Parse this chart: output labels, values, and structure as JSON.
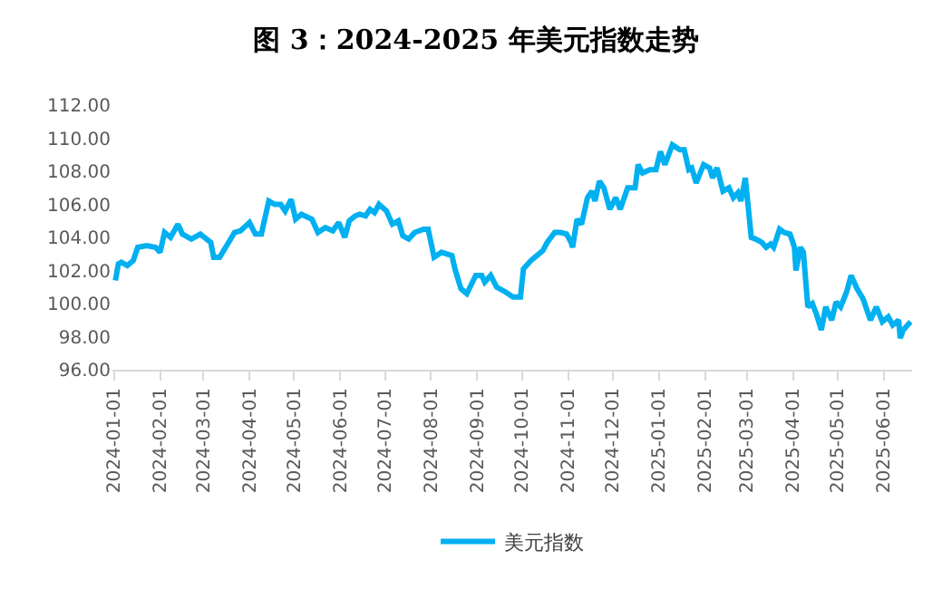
{
  "chart_data": {
    "type": "line",
    "title": "图 3：2024-2025 年美元指数走势",
    "x": [
      "2024-01-02",
      "2024-01-04",
      "2024-01-06",
      "2024-01-10",
      "2024-01-14",
      "2024-01-17",
      "2024-01-23",
      "2024-01-29",
      "2024-02-01",
      "2024-02-04",
      "2024-02-08",
      "2024-02-13",
      "2024-02-16",
      "2024-02-22",
      "2024-02-28",
      "2024-03-06",
      "2024-03-08",
      "2024-03-12",
      "2024-03-16",
      "2024-03-22",
      "2024-03-26",
      "2024-04-01",
      "2024-04-05",
      "2024-04-09",
      "2024-04-14",
      "2024-04-18",
      "2024-04-22",
      "2024-04-25",
      "2024-04-29",
      "2024-05-02",
      "2024-05-06",
      "2024-05-13",
      "2024-05-17",
      "2024-05-22",
      "2024-05-27",
      "2024-05-31",
      "2024-06-04",
      "2024-06-07",
      "2024-06-11",
      "2024-06-14",
      "2024-06-18",
      "2024-06-21",
      "2024-06-24",
      "2024-06-27",
      "2024-07-02",
      "2024-07-06",
      "2024-07-10",
      "2024-07-13",
      "2024-07-17",
      "2024-07-21",
      "2024-07-27",
      "2024-07-30",
      "2024-08-03",
      "2024-08-08",
      "2024-08-15",
      "2024-08-17",
      "2024-08-21",
      "2024-08-25",
      "2024-08-31",
      "2024-09-04",
      "2024-09-06",
      "2024-09-10",
      "2024-09-14",
      "2024-09-20",
      "2024-09-25",
      "2024-09-30",
      "2024-10-02",
      "2024-10-07",
      "2024-10-11",
      "2024-10-15",
      "2024-10-18",
      "2024-10-23",
      "2024-10-27",
      "2024-10-31",
      "2024-11-03",
      "2024-11-04",
      "2024-11-07",
      "2024-11-10",
      "2024-11-14",
      "2024-11-17",
      "2024-11-19",
      "2024-11-22",
      "2024-11-25",
      "2024-11-29",
      "2024-12-03",
      "2024-12-06",
      "2024-12-11",
      "2024-12-16",
      "2024-12-18",
      "2024-12-21",
      "2024-12-26",
      "2024-12-30",
      "2025-01-02",
      "2025-01-05",
      "2025-01-10",
      "2025-01-15",
      "2025-01-18",
      "2025-01-21",
      "2025-01-23",
      "2025-01-26",
      "2025-01-31",
      "2025-02-04",
      "2025-02-06",
      "2025-02-09",
      "2025-02-13",
      "2025-02-17",
      "2025-02-20",
      "2025-02-23",
      "2025-02-25",
      "2025-02-28",
      "2025-03-04",
      "2025-03-07",
      "2025-03-11",
      "2025-03-14",
      "2025-03-17",
      "2025-03-19",
      "2025-03-23",
      "2025-03-26",
      "2025-03-30",
      "2025-04-02",
      "2025-04-03",
      "2025-04-06",
      "2025-04-08",
      "2025-04-11",
      "2025-04-14",
      "2025-04-17",
      "2025-04-20",
      "2025-04-23",
      "2025-04-27",
      "2025-04-30",
      "2025-05-03",
      "2025-05-07",
      "2025-05-10",
      "2025-05-14",
      "2025-05-18",
      "2025-05-23",
      "2025-05-27",
      "2025-05-31",
      "2025-06-04",
      "2025-06-07",
      "2025-06-11",
      "2025-06-12",
      "2025-06-14",
      "2025-06-17",
      "2025-06-19"
    ],
    "series": [
      {
        "name": "美元指数",
        "color": "#00b0f0",
        "values": [
          101.4,
          102.4,
          102.5,
          102.3,
          102.6,
          103.4,
          103.5,
          103.4,
          103.1,
          104.3,
          104.0,
          104.8,
          104.2,
          103.9,
          104.2,
          103.7,
          102.8,
          102.8,
          103.4,
          104.3,
          104.4,
          104.9,
          104.2,
          104.2,
          106.2,
          106.0,
          106.0,
          105.6,
          106.3,
          105.1,
          105.4,
          105.1,
          104.3,
          104.6,
          104.4,
          104.9,
          104.0,
          105.0,
          105.3,
          105.4,
          105.3,
          105.7,
          105.5,
          106.0,
          105.6,
          104.8,
          105.0,
          104.1,
          103.9,
          104.3,
          104.5,
          104.5,
          102.8,
          103.1,
          102.9,
          102.1,
          100.9,
          100.6,
          101.7,
          101.7,
          101.3,
          101.7,
          101.0,
          100.7,
          100.4,
          100.4,
          102.1,
          102.6,
          102.9,
          103.2,
          103.7,
          104.3,
          104.3,
          104.2,
          103.7,
          103.4,
          105.1,
          104.8,
          106.4,
          106.8,
          106.2,
          107.4,
          107.0,
          105.7,
          106.4,
          105.7,
          107.0,
          107.0,
          108.4,
          107.9,
          108.1,
          108.1,
          109.2,
          108.4,
          109.6,
          109.3,
          109.3,
          108.1,
          108.2,
          107.3,
          108.4,
          108.2,
          107.6,
          108.2,
          106.8,
          107.0,
          106.4,
          106.7,
          106.2,
          107.6,
          104.0,
          103.9,
          103.7,
          103.4,
          103.6,
          103.4,
          104.5,
          104.3,
          104.2,
          103.4,
          102.0,
          103.4,
          103.1,
          99.8,
          100.0,
          99.3,
          98.4,
          99.8,
          99.0,
          100.1,
          99.8,
          100.7,
          101.7,
          100.9,
          100.3,
          99.0,
          99.8,
          98.9,
          99.2,
          98.7,
          99.0,
          97.9,
          98.4,
          98.7,
          98.9
        ]
      }
    ],
    "xlim": [
      "2023-12-31",
      "2025-06-20"
    ],
    "xticks": [
      {
        "value": "2024-01-01",
        "label": "2024-01-01"
      },
      {
        "value": "2024-02-01",
        "label": "2024-02-01"
      },
      {
        "value": "2024-03-01",
        "label": "2024-03-01"
      },
      {
        "value": "2024-04-01",
        "label": "2024-04-01"
      },
      {
        "value": "2024-05-01",
        "label": "2024-05-01"
      },
      {
        "value": "2024-06-01",
        "label": "2024-06-01"
      },
      {
        "value": "2024-07-01",
        "label": "2024-07-01"
      },
      {
        "value": "2024-08-01",
        "label": "2024-08-01"
      },
      {
        "value": "2024-09-01",
        "label": "2024-09-01"
      },
      {
        "value": "2024-10-01",
        "label": "2024-10-01"
      },
      {
        "value": "2024-11-01",
        "label": "2024-11-01"
      },
      {
        "value": "2024-12-01",
        "label": "2024-12-01"
      },
      {
        "value": "2025-01-01",
        "label": "2025-01-01"
      },
      {
        "value": "2025-02-01",
        "label": "2025-02-01"
      },
      {
        "value": "2025-03-01",
        "label": "2025-03-01"
      },
      {
        "value": "2025-04-01",
        "label": "2025-04-01"
      },
      {
        "value": "2025-05-01",
        "label": "2025-05-01"
      },
      {
        "value": "2025-06-01",
        "label": "2025-06-01"
      }
    ],
    "ylim": [
      96,
      112
    ],
    "yticks": [
      {
        "value": 96,
        "label": "96.00"
      },
      {
        "value": 98,
        "label": "98.00"
      },
      {
        "value": 100,
        "label": "100.00"
      },
      {
        "value": 102,
        "label": "102.00"
      },
      {
        "value": 104,
        "label": "104.00"
      },
      {
        "value": 106,
        "label": "106.00"
      },
      {
        "value": 108,
        "label": "108.00"
      },
      {
        "value": 110,
        "label": "110.00"
      },
      {
        "value": 112,
        "label": "112.00"
      }
    ],
    "grid": false,
    "legend": "bottom",
    "marker": "none",
    "line_style": "solid"
  }
}
